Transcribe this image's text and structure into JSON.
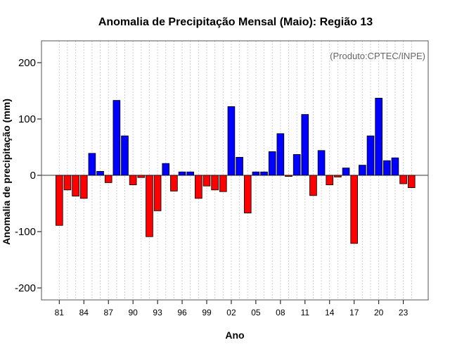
{
  "chart_data": {
    "type": "bar",
    "title": "Anomalia de Precipitação Mensal (Maio): Região 13",
    "xlabel": "Ano",
    "ylabel": "Anomalia de precipitação (mm)",
    "source_note": "(Produto:CPTEC/INPE)",
    "ylim": [
      -220,
      240
    ],
    "yticks": [
      -200,
      -100,
      0,
      100,
      200
    ],
    "x_tick_labels": [
      "81",
      "84",
      "87",
      "90",
      "93",
      "96",
      "99",
      "02",
      "05",
      "08",
      "11",
      "14",
      "17",
      "20",
      "23"
    ],
    "x_tick_years": [
      1981,
      1984,
      1987,
      1990,
      1993,
      1996,
      1999,
      2002,
      2005,
      2008,
      2011,
      2014,
      2017,
      2020,
      2023
    ],
    "positive_color": "#0000ff",
    "negative_color": "#ff0000",
    "grid": true,
    "years": [
      1981,
      1982,
      1983,
      1984,
      1985,
      1986,
      1987,
      1988,
      1989,
      1990,
      1991,
      1992,
      1993,
      1994,
      1995,
      1996,
      1997,
      1998,
      1999,
      2000,
      2001,
      2002,
      2003,
      2004,
      2005,
      2006,
      2007,
      2008,
      2009,
      2010,
      2011,
      2012,
      2013,
      2014,
      2015,
      2016,
      2017,
      2018,
      2019,
      2020,
      2021,
      2022,
      2023,
      2024
    ],
    "values": [
      -89,
      -26,
      -37,
      -41,
      39,
      7,
      -13,
      133,
      70,
      -17,
      -4,
      -109,
      -63,
      21,
      -28,
      6,
      6,
      -41,
      -19,
      -26,
      -29,
      122,
      32,
      -67,
      6,
      6,
      42,
      74,
      -2,
      37,
      108,
      -36,
      44,
      -17,
      -3,
      13,
      -121,
      18,
      70,
      137,
      26,
      31,
      -15,
      -22
    ]
  }
}
